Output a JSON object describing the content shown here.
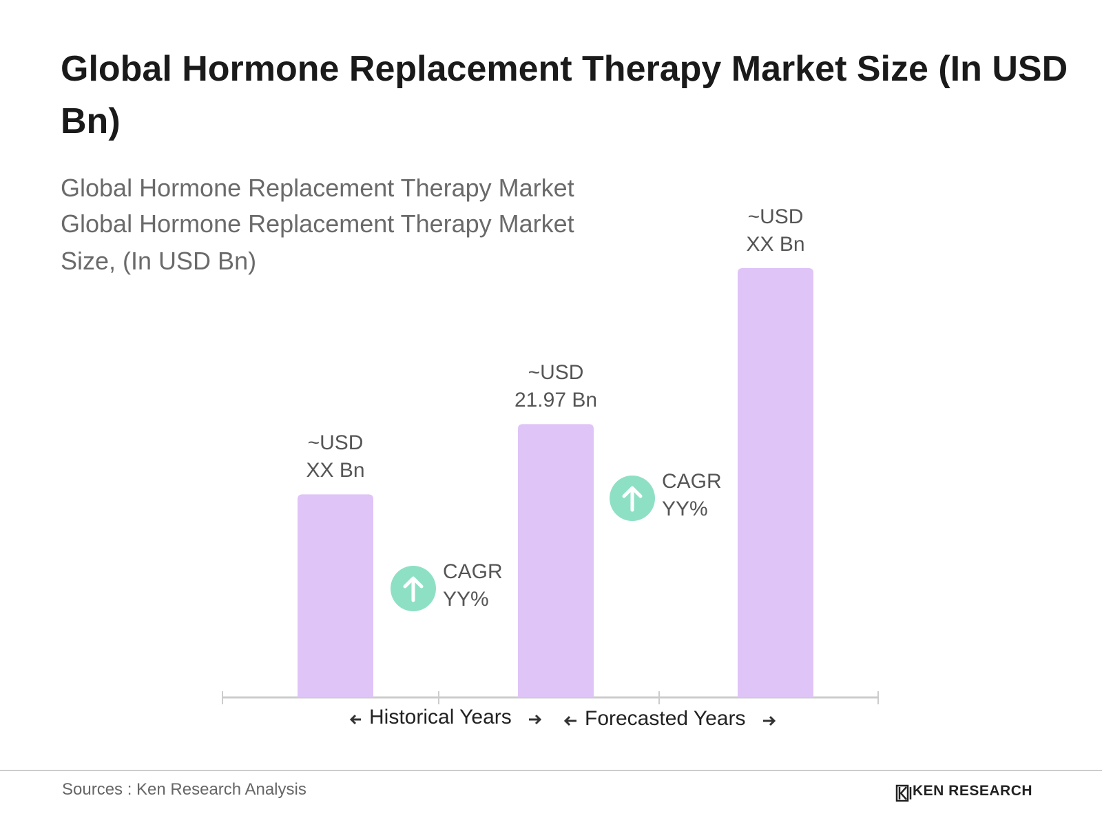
{
  "chart_data": {
    "type": "bar",
    "title": "Global Hormone Replacement Therapy Market Size (In USD Bn)",
    "subtitle": [
      "Global Hormone Replacement Therapy Market",
      "Global Hormone Replacement Therapy Market Size, (In USD Bn)"
    ],
    "categories": [
      null,
      null,
      null
    ],
    "values": [
      16.32,
      21.97,
      34.51
    ],
    "value_labels": [
      "~USD\nXX Bn",
      "~USD\n21.97 Bn",
      "~USD\nXX Bn"
    ],
    "color": "#dfc4f7",
    "cagr_labels": [
      "CAGR\nYY%",
      "CAGR\nYY%"
    ],
    "cagr_color": "#8ee0c5",
    "period_labels": [
      "Historical Years",
      "Forecasted Years"
    ],
    "source": "Sources : Ken Research Analysis",
    "logo": "KEN RESEARCH"
  }
}
